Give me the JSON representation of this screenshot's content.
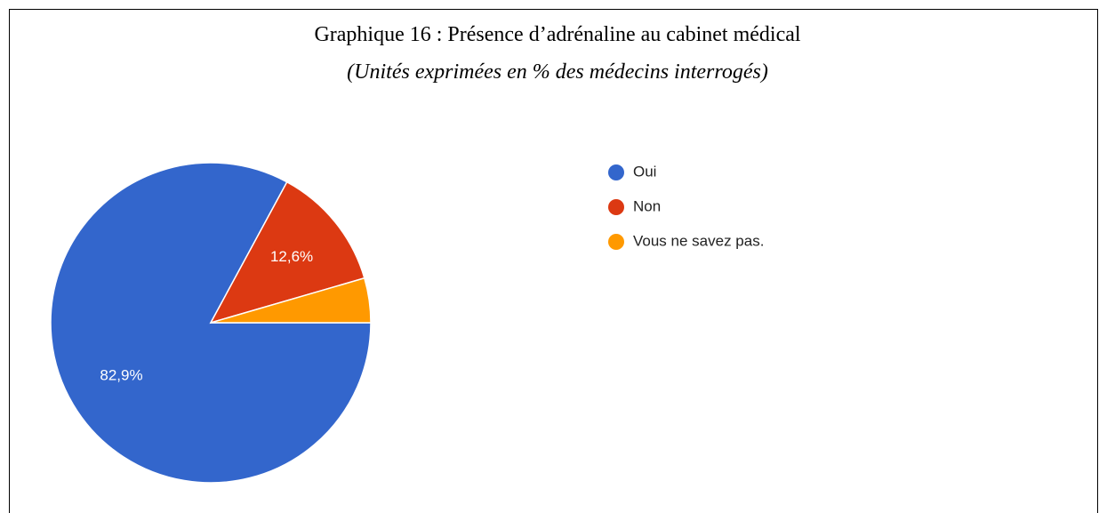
{
  "chart_data": {
    "type": "pie",
    "title": "Graphique 16 : Présence d’adrénaline au cabinet médical",
    "subtitle": "(Unités exprimées en % des médecins interrogés)",
    "categories": [
      "Oui",
      "Non",
      "Vous ne savez pas."
    ],
    "values": [
      82.9,
      12.6,
      4.5
    ],
    "value_labels": [
      "82,9%",
      "12,6%",
      null
    ],
    "colors": [
      "#3366cc",
      "#dc3912",
      "#ff9900"
    ],
    "legend": "right"
  }
}
